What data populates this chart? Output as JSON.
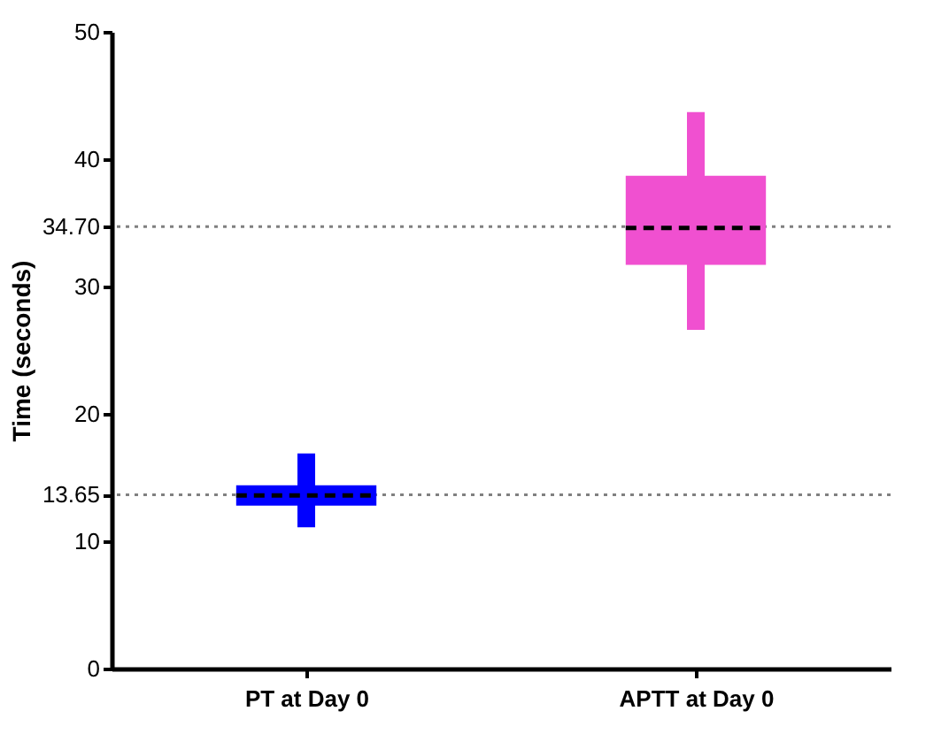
{
  "chart_data": {
    "type": "box",
    "ylabel": "Time (seconds)",
    "categories": [
      "PT at Day 0",
      "APTT at Day 0"
    ],
    "series": [
      {
        "color": "#0000ff",
        "boxes": [
          {
            "low": 11.1,
            "q1": 12.8,
            "median": 13.6,
            "q3": 14.4,
            "high": 16.9
          },
          null
        ]
      },
      {
        "color": "#f050d0",
        "boxes": [
          null,
          {
            "low": 26.6,
            "q1": 31.7,
            "median": 34.6,
            "q3": 38.7,
            "high": 43.7
          }
        ]
      }
    ],
    "ylim": [
      0,
      50
    ],
    "yticks": [
      0,
      10,
      {
        "value": 13.65,
        "label": "13.65"
      },
      20,
      30,
      {
        "value": 34.7,
        "label": "34.70"
      },
      40,
      50
    ],
    "ref_lines": [
      {
        "axis": "y",
        "value": 13.65,
        "color": "#808080",
        "line_style": "dotted"
      },
      {
        "axis": "y",
        "value": 34.7,
        "color": "#808080",
        "line_style": "dotted"
      }
    ],
    "grid": false
  }
}
